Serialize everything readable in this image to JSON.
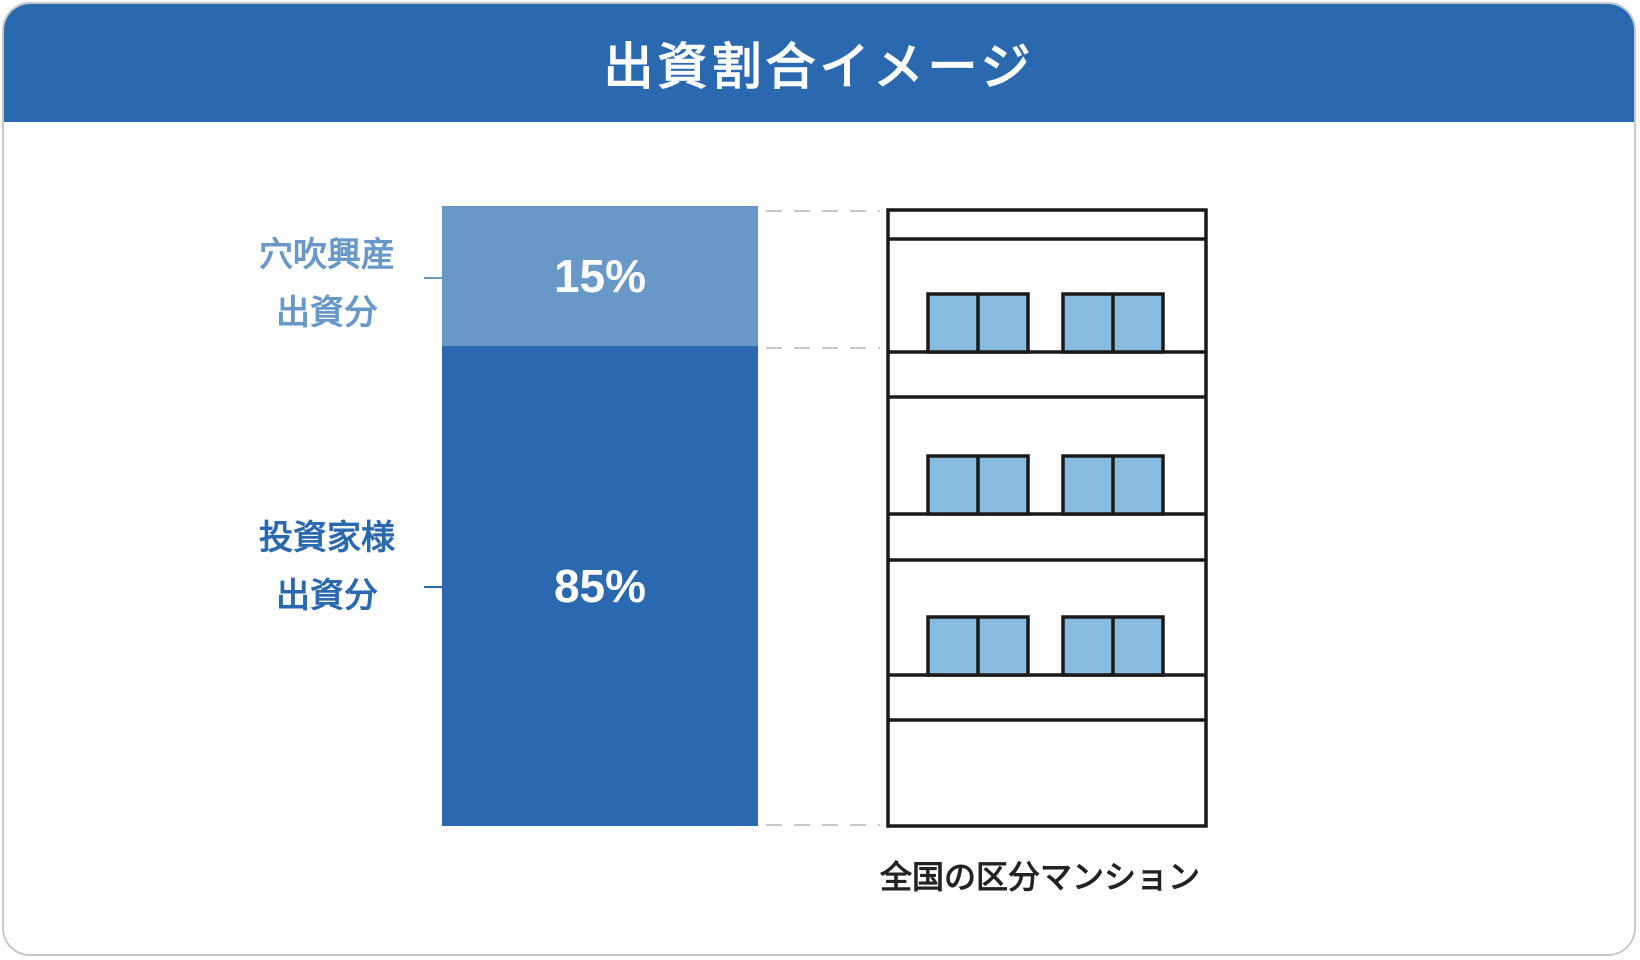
{
  "title": "出資割合イメージ",
  "segments": {
    "top": {
      "label_line1": "穴吹興産",
      "label_line2": "出資分",
      "percent_text": "15%",
      "value": 15
    },
    "bottom": {
      "label_line1": "投資家様",
      "label_line2": "出資分",
      "percent_text": "85%",
      "value": 85
    }
  },
  "building_caption": "全国の区分マンション",
  "colors": {
    "header": "#2a68b0",
    "top_segment": "#6898c8",
    "bottom_segment": "#2a68b0",
    "window_glass": "#88bbe0"
  }
}
